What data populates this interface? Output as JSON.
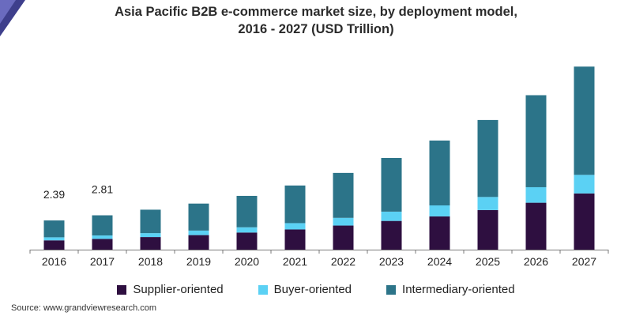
{
  "chart_data": {
    "type": "bar",
    "stacked": true,
    "title_line1": "Asia Pacific B2B e-commerce market size, by deployment model,",
    "title_line2": "2016 - 2027 (USD Trillion)",
    "categories": [
      "2016",
      "2017",
      "2018",
      "2019",
      "2020",
      "2021",
      "2022",
      "2023",
      "2024",
      "2025",
      "2026",
      "2027"
    ],
    "series": [
      {
        "name": "Supplier-oriented",
        "color": "#2e0f40",
        "values": [
          0.76,
          0.88,
          1.03,
          1.19,
          1.4,
          1.65,
          1.97,
          2.35,
          2.72,
          3.24,
          3.84,
          4.6
        ]
      },
      {
        "name": "Buyer-oriented",
        "color": "#5bd1f4",
        "values": [
          0.25,
          0.28,
          0.32,
          0.37,
          0.43,
          0.52,
          0.63,
          0.76,
          0.9,
          1.07,
          1.27,
          1.52
        ]
      },
      {
        "name": "Intermediary-oriented",
        "color": "#2c7489",
        "values": [
          1.38,
          1.65,
          1.92,
          2.21,
          2.57,
          3.08,
          3.68,
          4.39,
          5.31,
          6.3,
          7.53,
          8.86
        ]
      }
    ],
    "data_labels": [
      {
        "category": "2016",
        "text": "2.39"
      },
      {
        "category": "2017",
        "text": "2.81"
      }
    ],
    "ylim": [
      0,
      15
    ],
    "xlabel": "",
    "ylabel": "",
    "grid": false,
    "legend": "bottom"
  },
  "source": "Source: www.grandviewresearch.com",
  "colors": {
    "axis": "#7a7a7a",
    "label": "#222222"
  }
}
